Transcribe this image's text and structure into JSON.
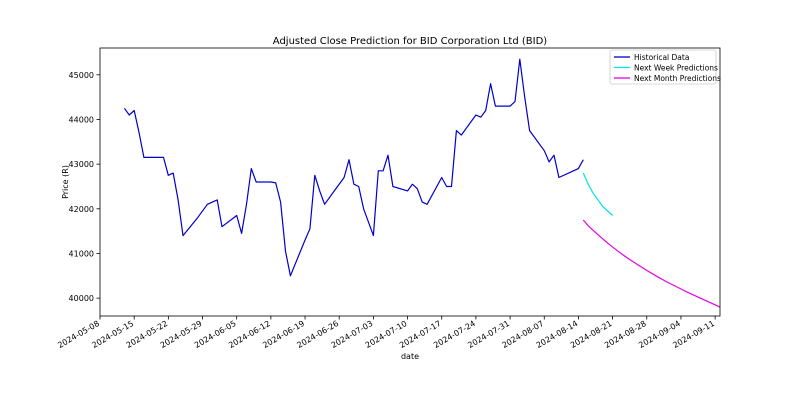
{
  "chart_data": {
    "type": "line",
    "title": "Adjusted Close Prediction for BID Corporation Ltd (BID)",
    "xlabel": "date",
    "ylabel": "Price (R)",
    "xlim": [
      "2024-05-08",
      "2024-09-12"
    ],
    "ylim": [
      39600,
      45600
    ],
    "x_ticks": [
      "2024-05-08",
      "2024-05-15",
      "2024-05-22",
      "2024-05-29",
      "2024-06-05",
      "2024-06-12",
      "2024-06-19",
      "2024-06-26",
      "2024-07-03",
      "2024-07-10",
      "2024-07-17",
      "2024-07-24",
      "2024-07-31",
      "2024-08-07",
      "2024-08-14",
      "2024-08-21",
      "2024-08-28",
      "2024-09-04",
      "2024-09-11"
    ],
    "y_ticks": [
      40000,
      41000,
      42000,
      43000,
      44000,
      45000
    ],
    "grid": false,
    "legend_position": "top-right",
    "series": [
      {
        "name": "Historical Data",
        "color": "#0000cd",
        "points": [
          [
            "2024-05-13",
            44250
          ],
          [
            "2024-05-14",
            44100
          ],
          [
            "2024-05-15",
            44200
          ],
          [
            "2024-05-16",
            43700
          ],
          [
            "2024-05-17",
            43150
          ],
          [
            "2024-05-20",
            43150
          ],
          [
            "2024-05-21",
            43150
          ],
          [
            "2024-05-22",
            42750
          ],
          [
            "2024-05-23",
            42800
          ],
          [
            "2024-05-24",
            42200
          ],
          [
            "2024-05-25",
            41400
          ],
          [
            "2024-05-28",
            41800
          ],
          [
            "2024-05-30",
            42100
          ],
          [
            "2024-06-01",
            42200
          ],
          [
            "2024-06-02",
            41600
          ],
          [
            "2024-06-05",
            41850
          ],
          [
            "2024-06-06",
            41450
          ],
          [
            "2024-06-07",
            42100
          ],
          [
            "2024-06-08",
            42900
          ],
          [
            "2024-06-09",
            42600
          ],
          [
            "2024-06-12",
            42600
          ],
          [
            "2024-06-13",
            42580
          ],
          [
            "2024-06-14",
            42150
          ],
          [
            "2024-06-15",
            41050
          ],
          [
            "2024-06-16",
            40500
          ],
          [
            "2024-06-19",
            41300
          ],
          [
            "2024-06-20",
            41550
          ],
          [
            "2024-06-21",
            42750
          ],
          [
            "2024-06-22",
            42400
          ],
          [
            "2024-06-23",
            42100
          ],
          [
            "2024-06-25",
            42400
          ],
          [
            "2024-06-27",
            42700
          ],
          [
            "2024-06-28",
            43100
          ],
          [
            "2024-06-29",
            42550
          ],
          [
            "2024-06-30",
            42500
          ],
          [
            "2024-07-01",
            42000
          ],
          [
            "2024-07-03",
            41400
          ],
          [
            "2024-07-04",
            42850
          ],
          [
            "2024-07-05",
            42850
          ],
          [
            "2024-07-06",
            43200
          ],
          [
            "2024-07-07",
            42500
          ],
          [
            "2024-07-10",
            42400
          ],
          [
            "2024-07-11",
            42550
          ],
          [
            "2024-07-12",
            42450
          ],
          [
            "2024-07-13",
            42150
          ],
          [
            "2024-07-14",
            42100
          ],
          [
            "2024-07-17",
            42700
          ],
          [
            "2024-07-18",
            42500
          ],
          [
            "2024-07-19",
            42500
          ],
          [
            "2024-07-20",
            43750
          ],
          [
            "2024-07-21",
            43650
          ],
          [
            "2024-07-24",
            44100
          ],
          [
            "2024-07-25",
            44050
          ],
          [
            "2024-07-26",
            44200
          ],
          [
            "2024-07-27",
            44800
          ],
          [
            "2024-07-28",
            44300
          ],
          [
            "2024-07-31",
            44300
          ],
          [
            "2024-08-01",
            44400
          ],
          [
            "2024-08-02",
            45350
          ],
          [
            "2024-08-03",
            44500
          ],
          [
            "2024-08-04",
            43750
          ],
          [
            "2024-08-07",
            43300
          ],
          [
            "2024-08-08",
            43050
          ],
          [
            "2024-08-09",
            43200
          ],
          [
            "2024-08-10",
            42700
          ],
          [
            "2024-08-13",
            42850
          ],
          [
            "2024-08-14",
            42900
          ],
          [
            "2024-08-15",
            43100
          ]
        ]
      },
      {
        "name": "Next Week Predictions",
        "color": "#00e5e5",
        "points": [
          [
            "2024-08-15",
            42800
          ],
          [
            "2024-08-16",
            42550
          ],
          [
            "2024-08-17",
            42350
          ],
          [
            "2024-08-18",
            42200
          ],
          [
            "2024-08-19",
            42050
          ],
          [
            "2024-08-20",
            41950
          ],
          [
            "2024-08-21",
            41850
          ]
        ]
      },
      {
        "name": "Next Month Predictions",
        "color": "#e500e5",
        "points": [
          [
            "2024-08-15",
            41750
          ],
          [
            "2024-08-16",
            41620
          ],
          [
            "2024-08-18",
            41420
          ],
          [
            "2024-08-20",
            41230
          ],
          [
            "2024-08-22",
            41060
          ],
          [
            "2024-08-24",
            40900
          ],
          [
            "2024-08-26",
            40760
          ],
          [
            "2024-08-28",
            40620
          ],
          [
            "2024-08-30",
            40490
          ],
          [
            "2024-09-01",
            40370
          ],
          [
            "2024-09-03",
            40260
          ],
          [
            "2024-09-05",
            40150
          ],
          [
            "2024-09-07",
            40050
          ],
          [
            "2024-09-09",
            39950
          ],
          [
            "2024-09-11",
            39850
          ],
          [
            "2024-09-12",
            39800
          ]
        ]
      }
    ]
  }
}
